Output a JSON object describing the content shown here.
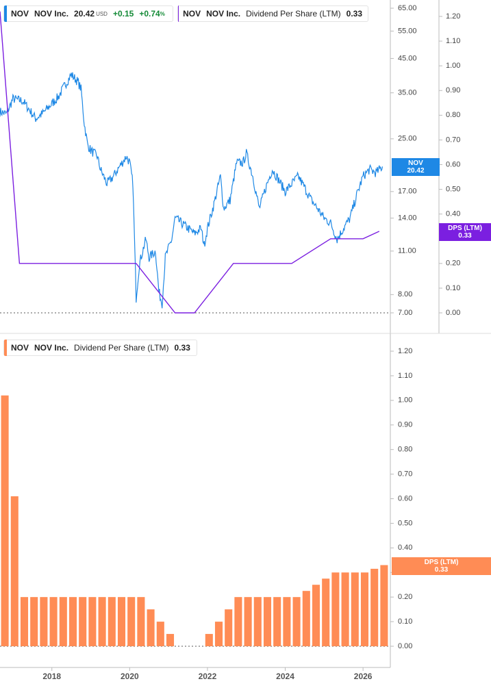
{
  "colors": {
    "price": "#1e88e5",
    "dps_line": "#7b1fe0",
    "dps_bar": "#ff8c55",
    "positive": "#138a36",
    "axis_text": "#444444",
    "grid_axis": "#bbbbbb"
  },
  "top_panel": {
    "legend_price": {
      "ticker": "NOV",
      "name": "NOV Inc.",
      "price": "20.42",
      "currency": "USD",
      "change": "+0.15",
      "change_pct": "+0.74",
      "pct_sign": "%"
    },
    "legend_dps": {
      "ticker": "NOV",
      "name": "NOV Inc.",
      "metric": "Dividend Per Share (LTM)",
      "value": "0.33"
    },
    "badge_price": {
      "label": "NOV",
      "value": "20.42"
    },
    "badge_dps": {
      "label": "DPS (LTM)",
      "value": "0.33"
    }
  },
  "bottom_panel": {
    "legend": {
      "ticker": "NOV",
      "name": "NOV Inc.",
      "metric": "Dividend Per Share (LTM)",
      "value": "0.33"
    },
    "badge": {
      "label": "DPS (LTM)",
      "value": "0.33"
    }
  },
  "chart_data": [
    {
      "type": "line",
      "title": "NOV Inc. price (USD)",
      "scale": "log",
      "y_ticks": [
        "65.00",
        "55.00",
        "45.00",
        "35.00",
        "25.00",
        "17.00",
        "14.00",
        "11.00",
        "8.00",
        "7.00"
      ],
      "y_range": [
        7,
        70
      ],
      "x_range": [
        "2016-09",
        "2026-09"
      ],
      "series": [
        {
          "name": "NOV",
          "points": [
            [
              "2016-09",
              30.5
            ],
            [
              "2016-11",
              30
            ],
            [
              "2017-01",
              33.5
            ],
            [
              "2017-04",
              33
            ],
            [
              "2017-06",
              31
            ],
            [
              "2017-08",
              29
            ],
            [
              "2017-10",
              30
            ],
            [
              "2017-12",
              31.5
            ],
            [
              "2018-03",
              34
            ],
            [
              "2018-05",
              37
            ],
            [
              "2018-07",
              40
            ],
            [
              "2018-09",
              38
            ],
            [
              "2018-10",
              36
            ],
            [
              "2018-11",
              28
            ],
            [
              "2018-12",
              24
            ],
            [
              "2019-01",
              23
            ],
            [
              "2019-03",
              22
            ],
            [
              "2019-04",
              20
            ],
            [
              "2019-06",
              18
            ],
            [
              "2019-08",
              19
            ],
            [
              "2019-10",
              20.5
            ],
            [
              "2019-12",
              22
            ],
            [
              "2020-01",
              21
            ],
            [
              "2020-02",
              18
            ],
            [
              "2020-03",
              7.8
            ],
            [
              "2020-04",
              10
            ],
            [
              "2020-05",
              11
            ],
            [
              "2020-06",
              12
            ],
            [
              "2020-07",
              10.5
            ],
            [
              "2020-09",
              11
            ],
            [
              "2020-10",
              8.2
            ],
            [
              "2020-11",
              7.5
            ],
            [
              "2020-12",
              10.5
            ],
            [
              "2021-02",
              12
            ],
            [
              "2021-03",
              14
            ],
            [
              "2021-05",
              13.5
            ],
            [
              "2021-07",
              13
            ],
            [
              "2021-09",
              12.5
            ],
            [
              "2021-11",
              13
            ],
            [
              "2021-12",
              11.5
            ],
            [
              "2022-01",
              13
            ],
            [
              "2022-03",
              15.5
            ],
            [
              "2022-05",
              19
            ],
            [
              "2022-06",
              15
            ],
            [
              "2022-08",
              16
            ],
            [
              "2022-10",
              21
            ],
            [
              "2022-12",
              21
            ],
            [
              "2023-01",
              22.5
            ],
            [
              "2023-03",
              19
            ],
            [
              "2023-05",
              15
            ],
            [
              "2023-07",
              17.5
            ],
            [
              "2023-09",
              20
            ],
            [
              "2023-11",
              18.5
            ],
            [
              "2024-01",
              17
            ],
            [
              "2024-03",
              18
            ],
            [
              "2024-05",
              19
            ],
            [
              "2024-07",
              17.5
            ],
            [
              "2024-09",
              16
            ],
            [
              "2024-11",
              15
            ],
            [
              "2025-01",
              14
            ],
            [
              "2025-03",
              13.5
            ],
            [
              "2025-05",
              12
            ],
            [
              "2025-07",
              13
            ],
            [
              "2025-09",
              14
            ],
            [
              "2025-11",
              16.5
            ],
            [
              "2026-01",
              19
            ],
            [
              "2026-03",
              20
            ],
            [
              "2026-05",
              19.5
            ],
            [
              "2026-07",
              20.42
            ]
          ]
        }
      ]
    },
    {
      "type": "line",
      "title": "Dividend Per Share (LTM)",
      "y_ticks": [
        "1.20",
        "1.10",
        "1.00",
        "0.90",
        "0.80",
        "0.70",
        "0.60",
        "0.50",
        "0.40",
        "0.30",
        "0.20",
        "0.10",
        "0.00"
      ],
      "y_range": [
        0,
        1.25
      ],
      "x_range": [
        "2016-09",
        "2026-09"
      ],
      "series": [
        {
          "name": "Dividend Per Share (LTM)",
          "points": [
            [
              "2016-09",
              1.22
            ],
            [
              "2017-03",
              0.2
            ],
            [
              "2020-03",
              0.2
            ],
            [
              "2021-03",
              0.0
            ],
            [
              "2021-09",
              0.0
            ],
            [
              "2022-09",
              0.2
            ],
            [
              "2024-03",
              0.2
            ],
            [
              "2025-03",
              0.3
            ],
            [
              "2026-01",
              0.3
            ],
            [
              "2026-06",
              0.33
            ]
          ]
        }
      ]
    },
    {
      "type": "bar",
      "title": "Dividend Per Share (LTM)",
      "y_ticks": [
        "1.20",
        "1.10",
        "1.00",
        "0.90",
        "0.80",
        "0.70",
        "0.60",
        "0.50",
        "0.40",
        "0.30",
        "0.20",
        "0.10",
        "0.00"
      ],
      "y_range": [
        0,
        1.25
      ],
      "x_ticks": [
        "2018",
        "2020",
        "2022",
        "2024",
        "2026"
      ],
      "x_range": [
        "2016-09",
        "2026-09"
      ],
      "categories": [
        "2016-09",
        "2016-12",
        "2017-03",
        "2017-06",
        "2017-09",
        "2017-12",
        "2018-03",
        "2018-06",
        "2018-09",
        "2018-12",
        "2019-03",
        "2019-06",
        "2019-09",
        "2019-12",
        "2020-03",
        "2020-06",
        "2020-09",
        "2020-12",
        "2021-03",
        "2021-06",
        "2021-09",
        "2021-12",
        "2022-03",
        "2022-06",
        "2022-09",
        "2022-12",
        "2023-03",
        "2023-06",
        "2023-09",
        "2023-12",
        "2024-03",
        "2024-06",
        "2024-09",
        "2024-12",
        "2025-03",
        "2025-06",
        "2025-09",
        "2025-12",
        "2026-03",
        "2026-06"
      ],
      "values": [
        1.02,
        0.61,
        0.2,
        0.2,
        0.2,
        0.2,
        0.2,
        0.2,
        0.2,
        0.2,
        0.2,
        0.2,
        0.2,
        0.2,
        0.2,
        0.15,
        0.1,
        0.05,
        0,
        0,
        0,
        0.05,
        0.1,
        0.15,
        0.2,
        0.2,
        0.2,
        0.2,
        0.2,
        0.2,
        0.2,
        0.225,
        0.25,
        0.275,
        0.3,
        0.3,
        0.3,
        0.3,
        0.315,
        0.33
      ]
    }
  ]
}
